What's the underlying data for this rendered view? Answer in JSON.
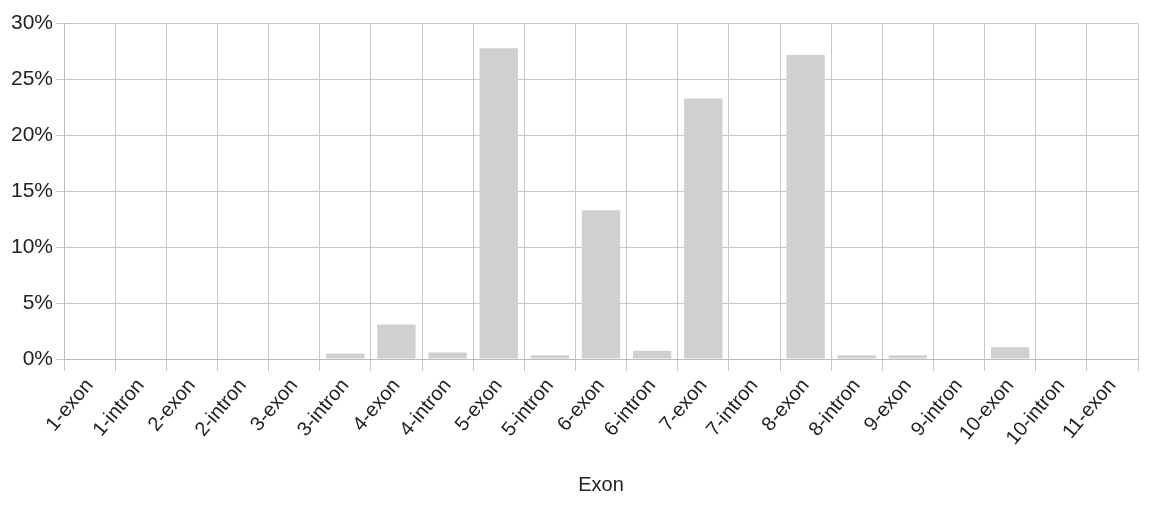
{
  "chart_data": {
    "type": "bar",
    "xlabel": "Exon",
    "categories": [
      "1-exon",
      "1-intron",
      "2-exon",
      "2-intron",
      "3-exon",
      "3-intron",
      "4-exon",
      "4-intron",
      "5-exon",
      "5-intron",
      "6-exon",
      "6-intron",
      "7-exon",
      "7-intron",
      "8-exon",
      "8-intron",
      "9-exon",
      "9-intron",
      "10-exon",
      "10-intron",
      "11-exon"
    ],
    "values": [
      0,
      0,
      0,
      0,
      0.05,
      0.5,
      3.1,
      0.6,
      27.8,
      0.35,
      13.3,
      0.75,
      23.3,
      0,
      27.2,
      0.35,
      0.35,
      0,
      1.05,
      0,
      0.05
    ],
    "color": "#d0d0d0",
    "ylim": [
      0,
      30
    ],
    "yticks": [
      {
        "value": 0,
        "label": "0%"
      },
      {
        "value": 5,
        "label": "5%"
      },
      {
        "value": 10,
        "label": "10%"
      },
      {
        "value": 15,
        "label": "15%"
      },
      {
        "value": 20,
        "label": "20%"
      },
      {
        "value": 25,
        "label": "25%"
      },
      {
        "value": 30,
        "label": "30%"
      }
    ],
    "grid": true,
    "legend": false
  }
}
